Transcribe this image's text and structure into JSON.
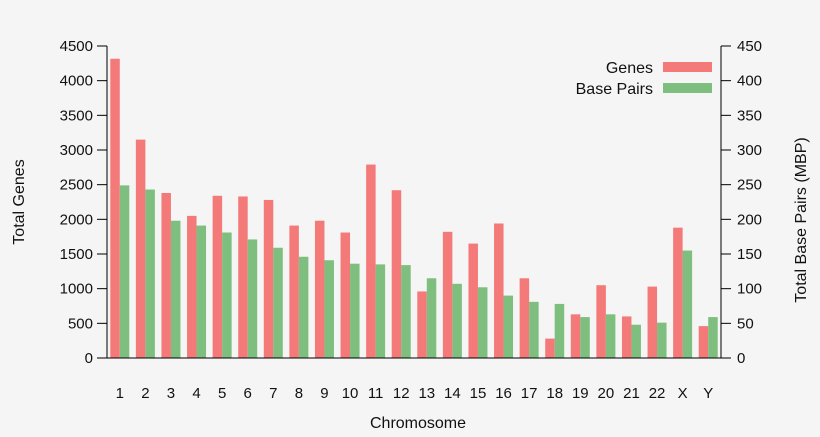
{
  "chart_data": {
    "type": "bar",
    "title": "",
    "xlabel": "Chromosome",
    "ylabel": "Total Genes",
    "y2label": "Total Base Pairs (MBP)",
    "ylim": [
      0,
      4500
    ],
    "y2lim": [
      0,
      450
    ],
    "yticks": [
      "0",
      "500",
      "1000",
      "1500",
      "2000",
      "2500",
      "3000",
      "3500",
      "4000",
      "4500"
    ],
    "y2ticks": [
      "0",
      "50",
      "100",
      "150",
      "200",
      "250",
      "300",
      "350",
      "400",
      "450"
    ],
    "categories": [
      "1",
      "2",
      "3",
      "4",
      "5",
      "6",
      "7",
      "8",
      "9",
      "10",
      "11",
      "12",
      "13",
      "14",
      "15",
      "16",
      "17",
      "18",
      "19",
      "20",
      "21",
      "22",
      "X",
      "Y"
    ],
    "legend_position": "top-right",
    "grid": false,
    "series": [
      {
        "name": "Genes",
        "axis": "left",
        "color": "#f47a7a",
        "values": [
          4316,
          3150,
          2380,
          2050,
          2340,
          2330,
          2280,
          1910,
          1980,
          1810,
          2790,
          2420,
          960,
          1820,
          1650,
          1940,
          1150,
          280,
          630,
          1050,
          600,
          1030,
          1880,
          460
        ]
      },
      {
        "name": "Base Pairs",
        "axis": "right",
        "color": "#7ebe7e",
        "values": [
          249,
          243,
          198,
          191,
          181,
          171,
          159,
          146,
          141,
          136,
          135,
          134,
          115,
          107,
          102,
          90,
          81,
          78,
          59,
          63,
          48,
          51,
          155,
          59
        ]
      }
    ]
  }
}
